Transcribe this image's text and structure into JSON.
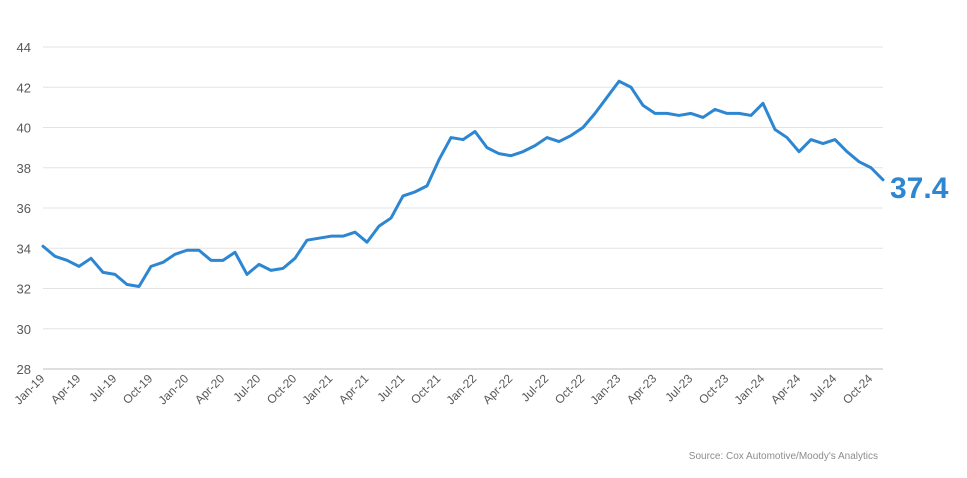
{
  "chart_data": {
    "type": "line",
    "title": "",
    "xlabel": "",
    "ylabel": "",
    "ylim": [
      28,
      44
    ],
    "yticks": [
      28,
      30,
      32,
      34,
      36,
      38,
      40,
      42,
      44
    ],
    "grid": true,
    "x_tick_labels": [
      "Jan-19",
      "Apr-19",
      "Jul-19",
      "Oct-19",
      "Jan-20",
      "Apr-20",
      "Jul-20",
      "Oct-20",
      "Jan-21",
      "Apr-21",
      "Jul-21",
      "Oct-21",
      "Jan-22",
      "Apr-22",
      "Jul-22",
      "Oct-22",
      "Jan-23",
      "Apr-23",
      "Jul-23",
      "Oct-23",
      "Jan-24",
      "Apr-24",
      "Jul-24",
      "Oct-24"
    ],
    "series": [
      {
        "color": "#2d86d1",
        "values": [
          34.1,
          33.6,
          33.4,
          33.1,
          33.5,
          32.8,
          32.7,
          32.2,
          32.1,
          33.1,
          33.3,
          33.7,
          33.9,
          33.9,
          33.4,
          33.4,
          33.8,
          32.7,
          33.2,
          32.9,
          33.0,
          33.5,
          34.4,
          34.5,
          34.6,
          34.6,
          34.8,
          34.3,
          35.1,
          35.5,
          36.6,
          36.8,
          37.1,
          38.4,
          39.5,
          39.4,
          39.8,
          39.0,
          38.7,
          38.6,
          38.8,
          39.1,
          39.5,
          39.3,
          39.6,
          40.0,
          40.7,
          41.5,
          42.3,
          42.0,
          41.1,
          40.7,
          40.7,
          40.6,
          40.7,
          40.5,
          40.9,
          40.7,
          40.7,
          40.6,
          41.2,
          39.9,
          39.5,
          38.8,
          39.4,
          39.2,
          39.4,
          38.8,
          38.3,
          38.0,
          37.4
        ]
      }
    ],
    "last_value_label": "37.4",
    "source": "Source: Cox Automotive/Moody's Analytics"
  }
}
